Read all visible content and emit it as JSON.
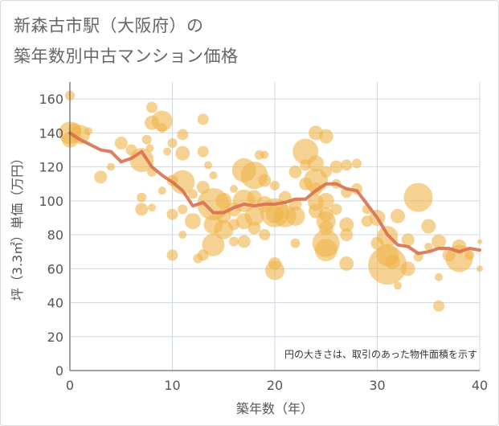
{
  "title_line1": "新森古市駅（大阪府）の",
  "title_line2": "築年数別中古マンション価格",
  "chart_data": {
    "type": "scatter",
    "xlabel": "築年数（年）",
    "ylabel": "坪（3.3㎡）単価（万円）",
    "xlim": [
      0,
      40
    ],
    "ylim": [
      0,
      170
    ],
    "xticks": [
      0,
      10,
      20,
      30,
      40
    ],
    "yticks": [
      0,
      20,
      40,
      60,
      80,
      100,
      120,
      140,
      160
    ],
    "grid": true,
    "annotation": "円の大きさは、取引のあった物件面積を示す",
    "bubble_color": "#f0b44a",
    "line_color": "#d9704f",
    "bubbles": [
      [
        0,
        140,
        14
      ],
      [
        0,
        136,
        10
      ],
      [
        0,
        162,
        6
      ],
      [
        0.5,
        142,
        8
      ],
      [
        1,
        139,
        12
      ],
      [
        1.8,
        141,
        5
      ],
      [
        3,
        114,
        8
      ],
      [
        4,
        120,
        5
      ],
      [
        5,
        134,
        8
      ],
      [
        6,
        130,
        7
      ],
      [
        7,
        124,
        15
      ],
      [
        7,
        102,
        6
      ],
      [
        7,
        95,
        8
      ],
      [
        7.5,
        136,
        6
      ],
      [
        7.8,
        131,
        5
      ],
      [
        8,
        155,
        7
      ],
      [
        8,
        146,
        9
      ],
      [
        8,
        117,
        6
      ],
      [
        8,
        96,
        5
      ],
      [
        9,
        147,
        13
      ],
      [
        9,
        143,
        6
      ],
      [
        9,
        106,
        5
      ],
      [
        9.5,
        129,
        5
      ],
      [
        10,
        134,
        6
      ],
      [
        10,
        112,
        7
      ],
      [
        10,
        92,
        7
      ],
      [
        10,
        68,
        7
      ],
      [
        11,
        128,
        9
      ],
      [
        11,
        139,
        7
      ],
      [
        11,
        111,
        15
      ],
      [
        11,
        95,
        6
      ],
      [
        11,
        80,
        5
      ],
      [
        12,
        88,
        10
      ],
      [
        12,
        104,
        6
      ],
      [
        12.5,
        66,
        6
      ],
      [
        13,
        148,
        7
      ],
      [
        13,
        129,
        7
      ],
      [
        13,
        108,
        8
      ],
      [
        13,
        68,
        7
      ],
      [
        13.5,
        121,
        5
      ],
      [
        14,
        98,
        20
      ],
      [
        14,
        86,
        12
      ],
      [
        14,
        74,
        14
      ],
      [
        14,
        115,
        5
      ],
      [
        15,
        100,
        10
      ],
      [
        15,
        91,
        9
      ],
      [
        15,
        83,
        12
      ],
      [
        16,
        95,
        9
      ],
      [
        16,
        86,
        7
      ],
      [
        16,
        76,
        6
      ],
      [
        16,
        107,
        5
      ],
      [
        17,
        118,
        15
      ],
      [
        17,
        100,
        14
      ],
      [
        17,
        88,
        10
      ],
      [
        17,
        76,
        8
      ],
      [
        18,
        115,
        17
      ],
      [
        18,
        102,
        9
      ],
      [
        18,
        91,
        12
      ],
      [
        18,
        84,
        8
      ],
      [
        18.5,
        127,
        6
      ],
      [
        19,
        112,
        8
      ],
      [
        19,
        98,
        10
      ],
      [
        19,
        80,
        7
      ],
      [
        19,
        127,
        5
      ],
      [
        20,
        109,
        6
      ],
      [
        20,
        93,
        18
      ],
      [
        20,
        92,
        11
      ],
      [
        20,
        63,
        8
      ],
      [
        20,
        59,
        12
      ],
      [
        21,
        102,
        8
      ],
      [
        21,
        91,
        14
      ],
      [
        22,
        117,
        8
      ],
      [
        22,
        98,
        8
      ],
      [
        22,
        91,
        12
      ],
      [
        22,
        75,
        6
      ],
      [
        23,
        129,
        16
      ],
      [
        23,
        121,
        7
      ],
      [
        23,
        110,
        8
      ],
      [
        24,
        140,
        9
      ],
      [
        24,
        122,
        10
      ],
      [
        24,
        112,
        15
      ],
      [
        24,
        107,
        8
      ],
      [
        24,
        99,
        10
      ],
      [
        24,
        94,
        9
      ],
      [
        25,
        138,
        9
      ],
      [
        25,
        117,
        7
      ],
      [
        25,
        100,
        10
      ],
      [
        25,
        92,
        9
      ],
      [
        25,
        88,
        12
      ],
      [
        25,
        84,
        9
      ],
      [
        25,
        75,
        17
      ],
      [
        25,
        71,
        14
      ],
      [
        26,
        120,
        8
      ],
      [
        26,
        110,
        6
      ],
      [
        26,
        95,
        7
      ],
      [
        27,
        121,
        7
      ],
      [
        27,
        105,
        7
      ],
      [
        27,
        86,
        9
      ],
      [
        27,
        80,
        8
      ],
      [
        27,
        63,
        9
      ],
      [
        28,
        122,
        6
      ],
      [
        28,
        107,
        7
      ],
      [
        29,
        95,
        6
      ],
      [
        29,
        88,
        7
      ],
      [
        30,
        90,
        10
      ],
      [
        30,
        75,
        8
      ],
      [
        31,
        79,
        13
      ],
      [
        31,
        68,
        14
      ],
      [
        31,
        62,
        24
      ],
      [
        31.5,
        64,
        9
      ],
      [
        32,
        91,
        9
      ],
      [
        32,
        50,
        5
      ],
      [
        33,
        77,
        8
      ],
      [
        33,
        60,
        9
      ],
      [
        34,
        102,
        18
      ],
      [
        34,
        67,
        6
      ],
      [
        35,
        85,
        9
      ],
      [
        35,
        73,
        5
      ],
      [
        36,
        76,
        9
      ],
      [
        36,
        55,
        5
      ],
      [
        36,
        38,
        7
      ],
      [
        37,
        68,
        8
      ],
      [
        38,
        73,
        9
      ],
      [
        38,
        66,
        17
      ],
      [
        39,
        68,
        6
      ],
      [
        40,
        60,
        4
      ],
      [
        40,
        76,
        3
      ]
    ],
    "trend_x": [
      0,
      1,
      2,
      3,
      4,
      5,
      6,
      7,
      8,
      9,
      10,
      11,
      12,
      13,
      14,
      15,
      16,
      17,
      18,
      19,
      20,
      21,
      22,
      23,
      24,
      25,
      26,
      27,
      28,
      29,
      30,
      31,
      32,
      33,
      34,
      35,
      36,
      37,
      38,
      39,
      40
    ],
    "trend_y": [
      140,
      136,
      133,
      130,
      129,
      123,
      125,
      129,
      120,
      115,
      111,
      106,
      97,
      99,
      93,
      93,
      96,
      98,
      97,
      98,
      98,
      99,
      101,
      101,
      106,
      110,
      110,
      107,
      106,
      98,
      90,
      80,
      74,
      73,
      69,
      70,
      72,
      72,
      70,
      72,
      71
    ]
  }
}
